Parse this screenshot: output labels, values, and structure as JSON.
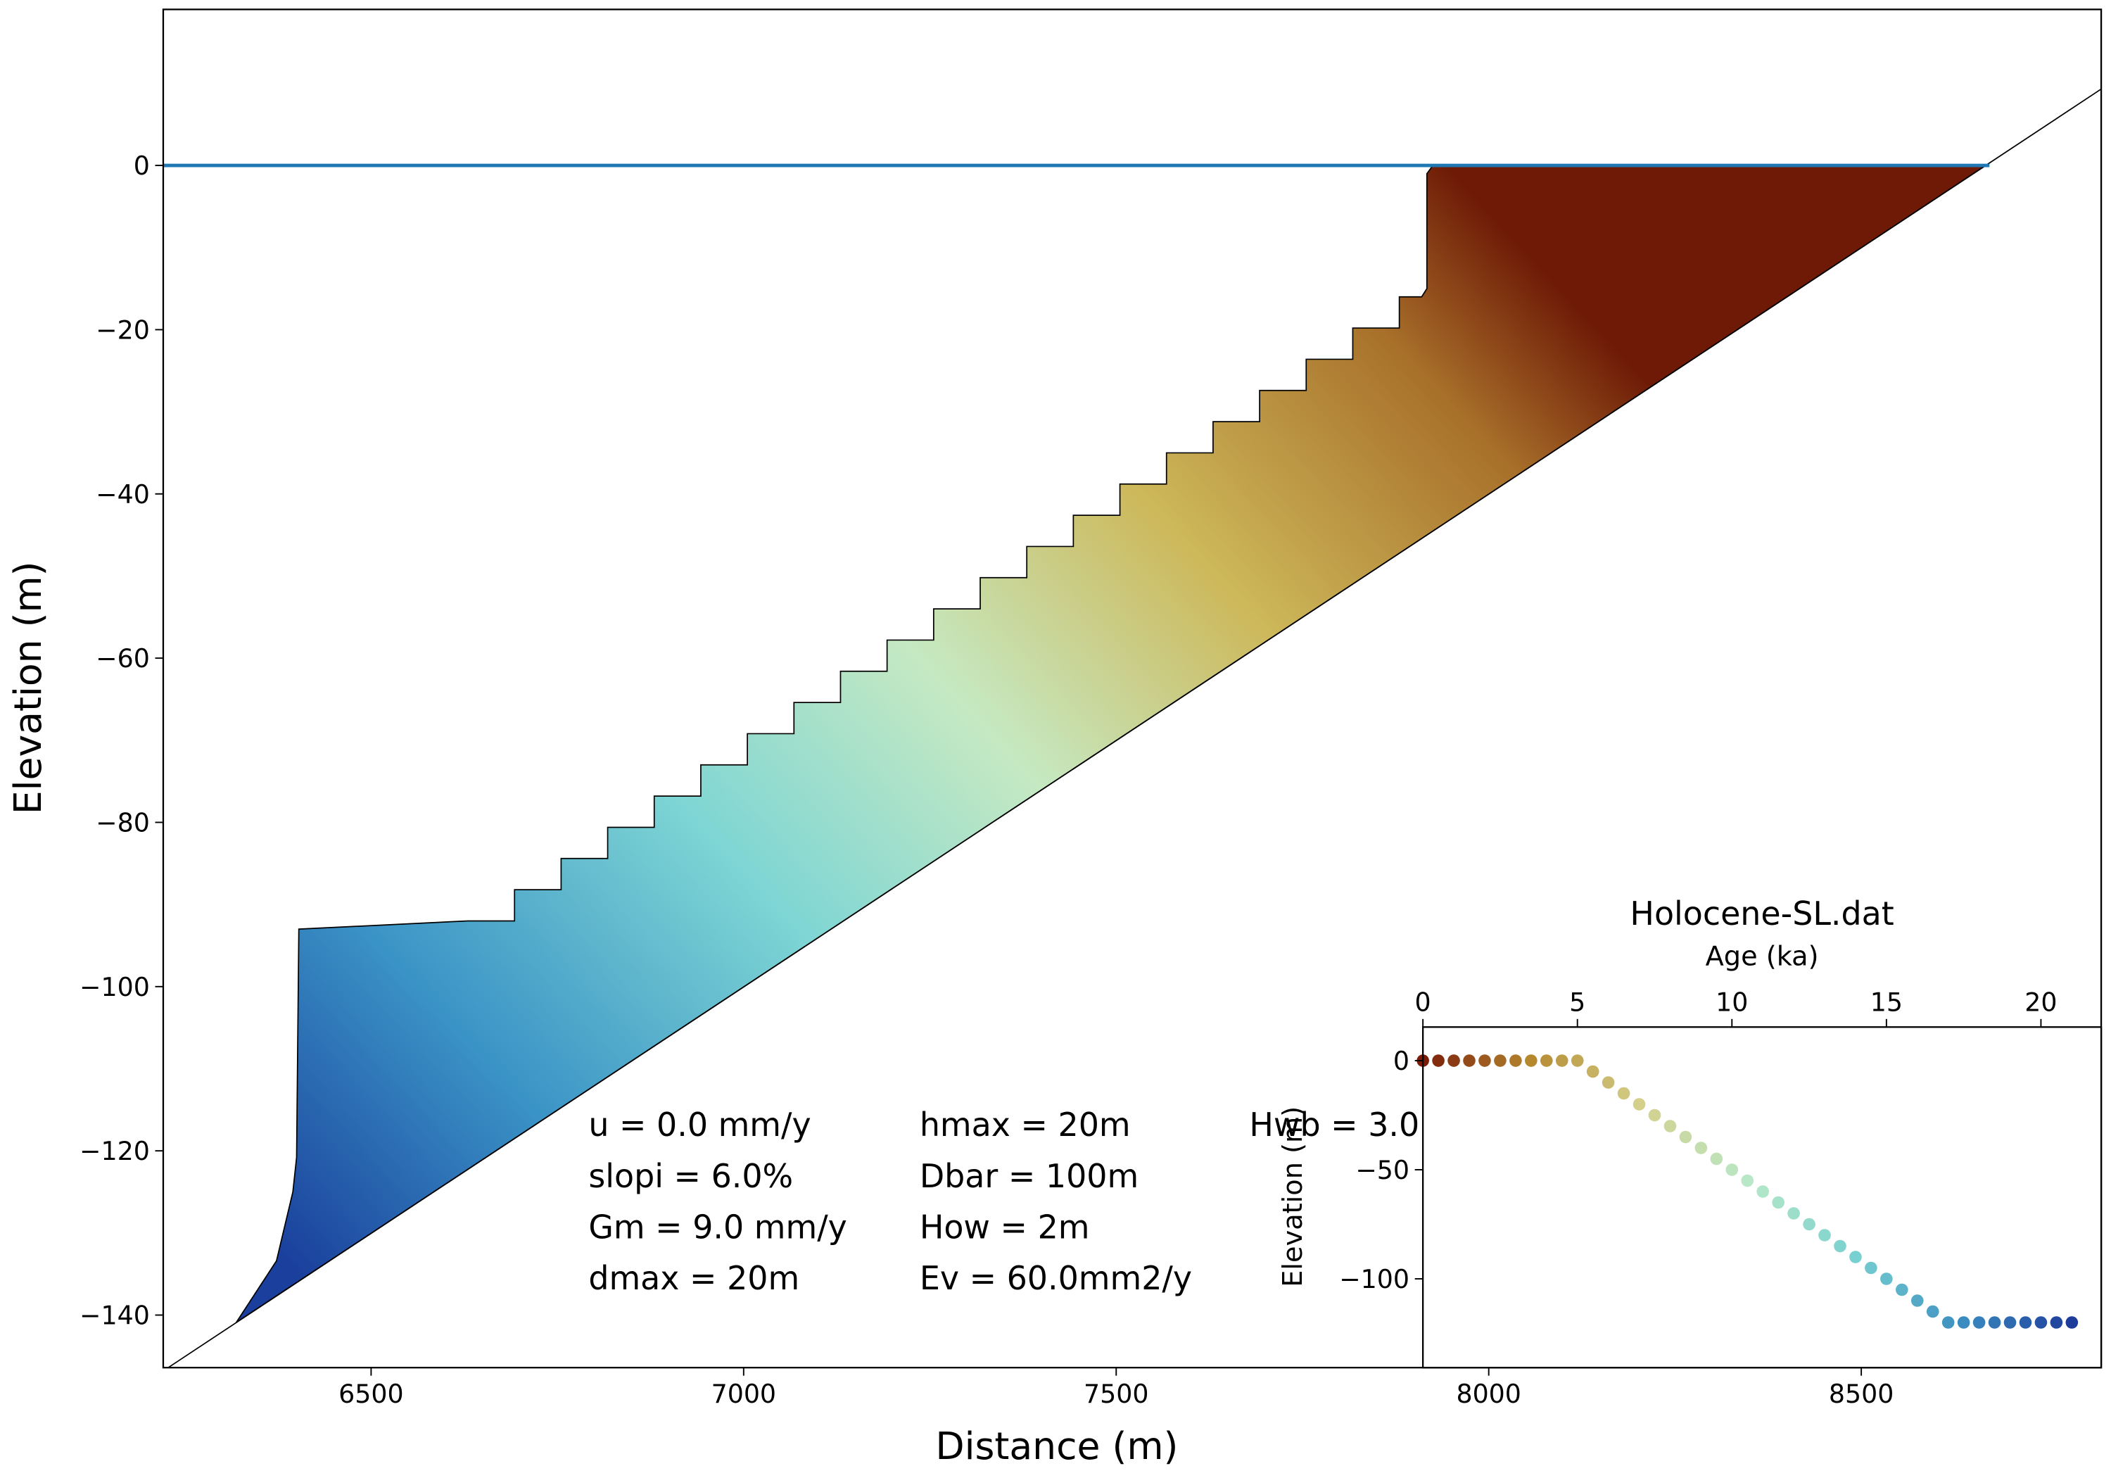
{
  "chart_data": [
    {
      "type": "line",
      "xlabel": "Distance (m)",
      "ylabel": "Elevation (m)",
      "xlim": [
        6221,
        8822
      ],
      "ylim": [
        -146.4,
        19
      ],
      "xticks": [
        6500,
        7000,
        7500,
        8000,
        8500
      ],
      "yticks": [
        0,
        {
          "value": -20,
          "label": "−20"
        },
        {
          "value": -40,
          "label": "−40"
        },
        {
          "value": -60,
          "label": "−60"
        },
        {
          "value": -80,
          "label": "−80"
        },
        {
          "value": -100,
          "label": "−100"
        },
        {
          "value": -120,
          "label": "−120"
        },
        {
          "value": -140,
          "label": "−140"
        }
      ],
      "series": [
        {
          "color": "#000000",
          "filled": true,
          "x": [
            6319,
            6373,
            6395,
            6400,
            6403,
            6630,
            6692.5,
            6692.5,
            6755,
            6755,
            6817.5,
            6817.5,
            6880,
            6880,
            6942.5,
            6942.5,
            7005,
            7005,
            7067.5,
            7067.5,
            7130,
            7130,
            7192.5,
            7192.5,
            7255,
            7255,
            7317.5,
            7317.5,
            7380,
            7380,
            7442.5,
            7442.5,
            7505,
            7505,
            7567.5,
            7567.5,
            7630,
            7630,
            7692.5,
            7692.5,
            7755,
            7755,
            7817.5,
            7817.5,
            7880,
            7880,
            7910,
            7917,
            7917,
            7925,
            8667
          ],
          "values": [
            -140.9,
            -133.4,
            -125,
            -120.8,
            -93,
            -92,
            -92,
            -88.2,
            -88.2,
            -84.4,
            -84.4,
            -80.6,
            -80.6,
            -76.8,
            -76.8,
            -73,
            -73,
            -69.2,
            -69.2,
            -65.4,
            -65.4,
            -61.6,
            -61.6,
            -57.8,
            -57.8,
            -54,
            -54,
            -50.2,
            -50.2,
            -46.4,
            -46.4,
            -42.6,
            -42.6,
            -38.8,
            -38.8,
            -35,
            -35,
            -31.2,
            -31.2,
            -27.4,
            -27.4,
            -23.6,
            -23.6,
            -19.8,
            -19.8,
            -16,
            -16,
            -15,
            -1,
            0,
            0
          ]
        },
        {
          "color": "#000000",
          "x": [
            6221,
            8822
          ],
          "values": [
            -146.8,
            9.3
          ]
        },
        {
          "color": "#1f77b4",
          "x": [
            6221,
            8672
          ],
          "values": [
            0,
            0
          ]
        }
      ],
      "annotations": [
        "u = 0.0 mm/y",
        "hmax = 20m",
        "Hwb = 3.0",
        "slopi = 6.0%",
        "Dbar = 100m",
        "Gm = 9.0 mm/y",
        "How = 2m",
        "dmax = 20m",
        "Ev = 60.0mm2/y"
      ]
    },
    {
      "type": "scatter",
      "title": "Holocene-SL.dat",
      "xlabel": "Age (ka)",
      "ylabel": "Elevation (m)",
      "xlim": [
        0,
        21.95
      ],
      "ylim": [
        -140.7,
        15.4
      ],
      "xticks": [
        0,
        5,
        10,
        15,
        20
      ],
      "yticks": [
        0,
        {
          "value": -50,
          "label": "−50"
        },
        {
          "value": -100,
          "label": "−100"
        }
      ],
      "colormap": [
        "#7a1c08",
        "#b5882e",
        "#d4d08a",
        "#b8e8c8",
        "#78d0d0",
        "#3a8cc0",
        "#1e3c9a"
      ],
      "x": [
        0,
        0.5,
        1,
        1.5,
        2,
        2.5,
        3,
        3.5,
        4,
        4.5,
        5,
        5.5,
        6,
        6.5,
        7,
        7.5,
        8,
        8.5,
        9,
        9.5,
        10,
        10.5,
        11,
        11.5,
        12,
        12.5,
        13,
        13.5,
        14,
        14.5,
        15,
        15.5,
        16,
        16.5,
        17,
        17.5,
        18,
        18.5,
        19,
        19.5,
        20,
        20.5,
        21
      ],
      "values": [
        0,
        0,
        0,
        0,
        0,
        0,
        0,
        0,
        0,
        0,
        0,
        -5,
        -10,
        -15,
        -20,
        -25,
        -30,
        -35,
        -40,
        -45,
        -50,
        -55,
        -60,
        -65,
        -70,
        -75,
        -80,
        -85,
        -90,
        -95,
        -100,
        -105,
        -110,
        -115,
        -120,
        -120,
        -120,
        -120,
        -120,
        -120,
        -120,
        -120,
        -120
      ]
    }
  ]
}
